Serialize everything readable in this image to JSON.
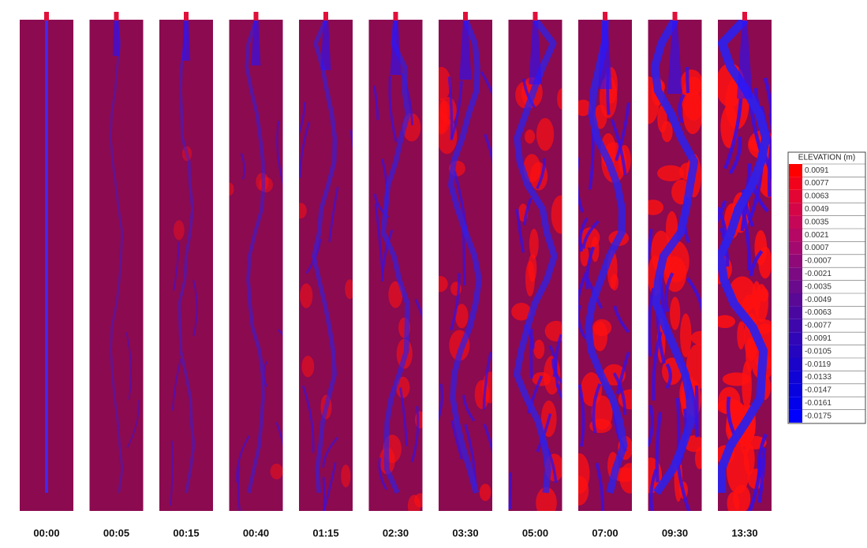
{
  "panels": [
    "00:00",
    "00:05",
    "00:15",
    "00:40",
    "01:15",
    "02:30",
    "03:30",
    "05:00",
    "07:00",
    "09:30",
    "13:30"
  ],
  "legend": {
    "title": "ELEVATION (m)",
    "items": [
      {
        "label": "0.0091",
        "color": "#ff0000"
      },
      {
        "label": "0.0077",
        "color": "#f2031c"
      },
      {
        "label": "0.0063",
        "color": "#e30533"
      },
      {
        "label": "0.0049",
        "color": "#d50647"
      },
      {
        "label": "0.0035",
        "color": "#c60758"
      },
      {
        "label": "0.0021",
        "color": "#b50865"
      },
      {
        "label": "0.0007",
        "color": "#a3096f"
      },
      {
        "label": "-0.0007",
        "color": "#8f0a78"
      },
      {
        "label": "-0.0021",
        "color": "#7c0a82"
      },
      {
        "label": "-0.0035",
        "color": "#6a0a8c"
      },
      {
        "label": "-0.0049",
        "color": "#5a0996"
      },
      {
        "label": "-0.0063",
        "color": "#4b08a1"
      },
      {
        "label": "-0.0077",
        "color": "#3e07ab"
      },
      {
        "label": "-0.0091",
        "color": "#3106b6"
      },
      {
        "label": "-0.0105",
        "color": "#2505c0"
      },
      {
        "label": "-0.0119",
        "color": "#1a04ca"
      },
      {
        "label": "-0.0133",
        "color": "#1003d5"
      },
      {
        "label": "-0.0147",
        "color": "#0802df"
      },
      {
        "label": "-0.0161",
        "color": "#0301ea"
      },
      {
        "label": "-0.0175",
        "color": "#0000ff"
      }
    ]
  }
}
